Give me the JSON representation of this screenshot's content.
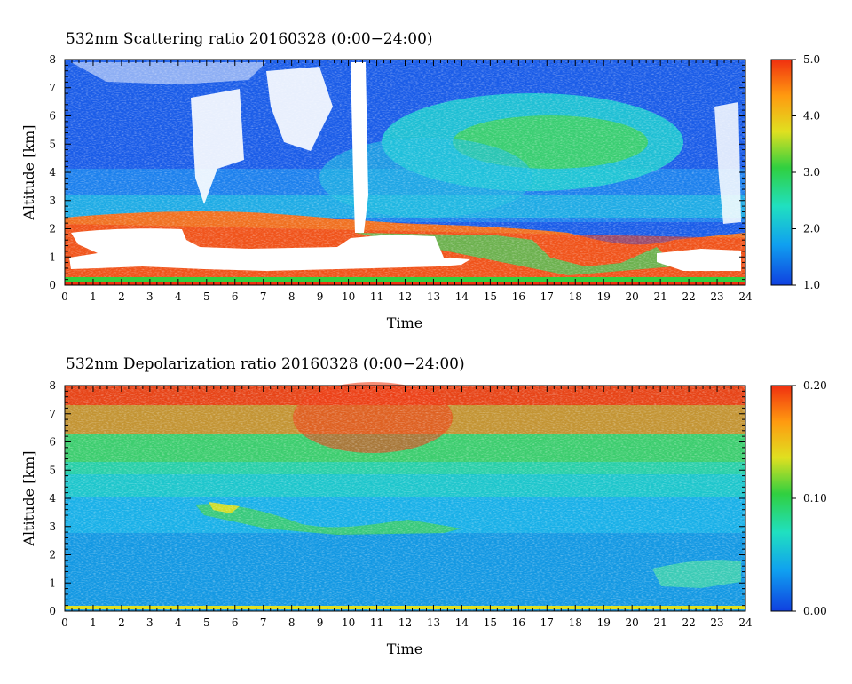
{
  "chart_data": [
    {
      "type": "heatmap",
      "title": "532nm Scattering ratio  20160328 (0:00−24:00)",
      "xlabel": "Time",
      "ylabel": "Altitude [km]",
      "xlim": [
        0,
        24
      ],
      "ylim": [
        0,
        8
      ],
      "x_ticks": [
        "0",
        "1",
        "2",
        "3",
        "4",
        "5",
        "6",
        "7",
        "8",
        "9",
        "10",
        "11",
        "12",
        "13",
        "14",
        "15",
        "16",
        "17",
        "18",
        "19",
        "20",
        "21",
        "22",
        "23",
        "24"
      ],
      "y_ticks": [
        "0",
        "1",
        "2",
        "3",
        "4",
        "5",
        "6",
        "7",
        "8"
      ],
      "colorbar": {
        "min": 1.0,
        "max": 5.0,
        "ticks": [
          "1.0",
          "2.0",
          "3.0",
          "4.0",
          "5.0"
        ],
        "colors": [
          "#1040e0",
          "#10a0f0",
          "#20e0c0",
          "#30d040",
          "#e0e020",
          "#ff9a10",
          "#f03010"
        ]
      },
      "features": [
        {
          "desc": "dense aerosol layer (ratio ~4-5)",
          "x": [
            0,
            24
          ],
          "y": [
            0.3,
            2.6
          ]
        },
        {
          "desc": "no-data (cloud attenuation)",
          "x": [
            0.2,
            13.2
          ],
          "y": [
            0.4,
            1.9
          ]
        },
        {
          "desc": "elevated aerosol layer (ratio ~2.5-3)",
          "x": [
            14,
            21
          ],
          "y": [
            3.5,
            6
          ]
        },
        {
          "desc": "clean upper air (ratio ~1.3)",
          "x": [
            0,
            24
          ],
          "y": [
            3,
            8
          ]
        }
      ]
    },
    {
      "type": "heatmap",
      "title": "532nm Depolarization ratio  20160328 (0:00−24:00)",
      "xlabel": "Time",
      "ylabel": "Altitude [km]",
      "xlim": [
        0,
        24
      ],
      "ylim": [
        0,
        8
      ],
      "x_ticks": [
        "0",
        "1",
        "2",
        "3",
        "4",
        "5",
        "6",
        "7",
        "8",
        "9",
        "10",
        "11",
        "12",
        "13",
        "14",
        "15",
        "16",
        "17",
        "18",
        "19",
        "20",
        "21",
        "22",
        "23",
        "24"
      ],
      "y_ticks": [
        "0",
        "1",
        "2",
        "3",
        "4",
        "5",
        "6",
        "7",
        "8"
      ],
      "colorbar": {
        "min": 0.0,
        "max": 0.2,
        "ticks": [
          "0.00",
          "0.10",
          "0.20"
        ],
        "colors": [
          "#1040e0",
          "#10a0f0",
          "#20e0c0",
          "#30d040",
          "#e0e020",
          "#ff9a10",
          "#f03010"
        ]
      },
      "features": [
        {
          "desc": "low depolarization near surface (~0.03)",
          "x": [
            0,
            24
          ],
          "y": [
            0,
            3
          ]
        },
        {
          "desc": "noisy high depolarization aloft (~0.15-0.2)",
          "x": [
            0,
            24
          ],
          "y": [
            6,
            8
          ]
        },
        {
          "desc": "dust layer (~0.1)",
          "x": [
            5,
            9
          ],
          "y": [
            3,
            4
          ]
        }
      ]
    }
  ]
}
